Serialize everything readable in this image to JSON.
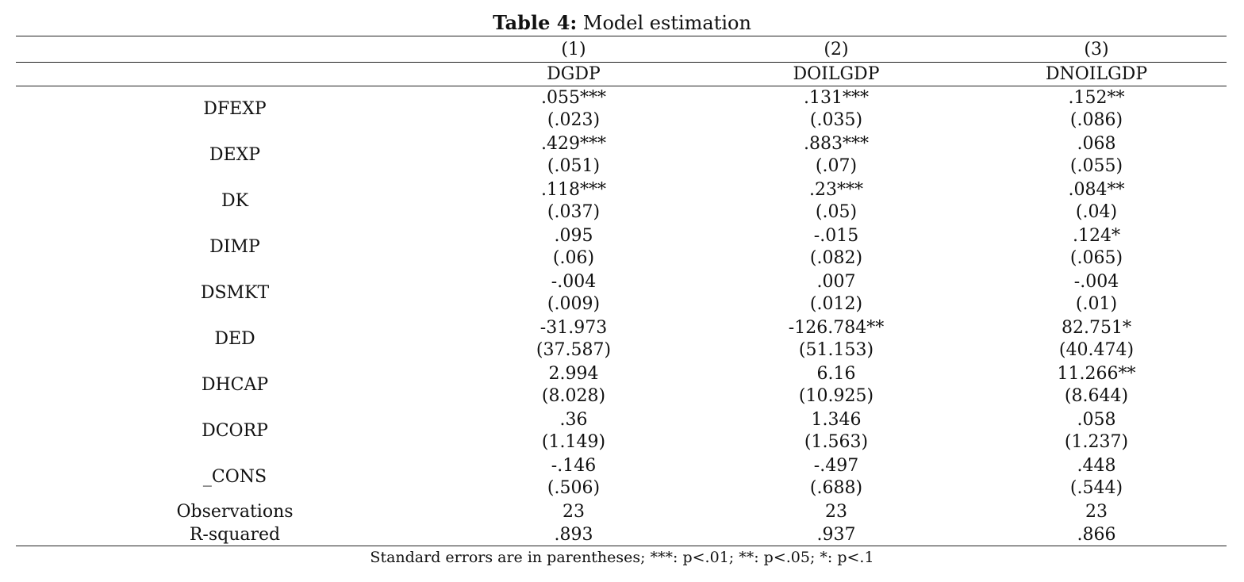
{
  "caption": {
    "label": "Table 4:",
    "title": "Model estimation"
  },
  "models": [
    {
      "number": "(1)",
      "dependent": "DGDP"
    },
    {
      "number": "(2)",
      "dependent": "DOILGDP"
    },
    {
      "number": "(3)",
      "dependent": "DNOILGDP"
    }
  ],
  "rows": [
    {
      "label": "DFEXP",
      "coef": [
        ".055***",
        ".131***",
        ".152**"
      ],
      "se": [
        "(.023)",
        "(.035)",
        "(.086)"
      ]
    },
    {
      "label": "DEXP",
      "coef": [
        ".429***",
        ".883***",
        ".068"
      ],
      "se": [
        "(.051)",
        "(.07)",
        "(.055)"
      ]
    },
    {
      "label": "DK",
      "coef": [
        ".118***",
        ".23***",
        ".084**"
      ],
      "se": [
        "(.037)",
        "(.05)",
        "(.04)"
      ]
    },
    {
      "label": "DIMP",
      "coef": [
        ".095",
        "-.015",
        ".124*"
      ],
      "se": [
        "(.06)",
        "(.082)",
        "(.065)"
      ]
    },
    {
      "label": "DSMKT",
      "coef": [
        "-.004",
        ".007",
        "-.004"
      ],
      "se": [
        "(.009)",
        "(.012)",
        "(.01)"
      ]
    },
    {
      "label": "DED",
      "coef": [
        "-31.973",
        "-126.784**",
        "82.751*"
      ],
      "se": [
        "(37.587)",
        "(51.153)",
        "(40.474)"
      ]
    },
    {
      "label": "DHCAP",
      "coef": [
        "2.994",
        "6.16",
        "11.266**"
      ],
      "se": [
        "(8.028)",
        "(10.925)",
        "(8.644)"
      ]
    },
    {
      "label": "DCORP",
      "coef": [
        ".36",
        "1.346",
        ".058"
      ],
      "se": [
        "(1.149)",
        "(1.563)",
        "(1.237)"
      ]
    },
    {
      "label": "_CONS",
      "coef": [
        "-.146",
        "-.497",
        ".448"
      ],
      "se": [
        "(.506)",
        "(.688)",
        "(.544)"
      ]
    }
  ],
  "stats": [
    {
      "label": "Observations",
      "values": [
        "23",
        "23",
        "23"
      ]
    },
    {
      "label": "R-squared",
      "values": [
        ".893",
        ".937",
        ".866"
      ]
    }
  ],
  "footnote": "Standard errors are in parentheses; ***: p<.01; **: p<.05; *: p<.1"
}
